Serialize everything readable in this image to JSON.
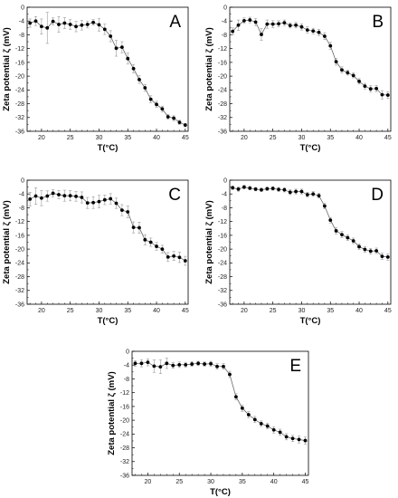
{
  "figure": {
    "xlabel": "T(°C)",
    "ylabel": "Zeta potential ζ (mV)"
  },
  "chart_data": [
    {
      "type": "scatter",
      "title": "A",
      "xlabel": "T(°C)",
      "ylabel": "Zeta potential ζ (mV)",
      "xlim": [
        17.5,
        45.5
      ],
      "ylim": [
        -36,
        0
      ],
      "xticks": [
        20,
        25,
        30,
        35,
        40,
        45
      ],
      "yticks": [
        0,
        -4,
        -8,
        -12,
        -16,
        -20,
        -24,
        -28,
        -32,
        -36
      ],
      "x": [
        18,
        19,
        20,
        21,
        22,
        23,
        24,
        25,
        26,
        27,
        28,
        29,
        30,
        31,
        32,
        33,
        34,
        35,
        36,
        37,
        38,
        39,
        40,
        41,
        42,
        43,
        44,
        45
      ],
      "y": [
        -4.6,
        -4.0,
        -5.6,
        -6.0,
        -4.1,
        -5.0,
        -4.6,
        -5.0,
        -5.6,
        -5.2,
        -5.0,
        -4.4,
        -5.1,
        -6.4,
        -8.4,
        -11.9,
        -11.6,
        -14.9,
        -17.8,
        -21.0,
        -23.4,
        -26.7,
        -28.2,
        -29.5,
        -31.8,
        -32.2,
        -33.4,
        -34.2
      ],
      "err": [
        1.2,
        1.3,
        2.2,
        4.5,
        1.0,
        2.3,
        1.6,
        1.4,
        1.5,
        1.4,
        1.0,
        0.8,
        1.8,
        1.5,
        1.6,
        2.3,
        1.6,
        1.6,
        1.2,
        1.1,
        1.0,
        1.0,
        0.9,
        0.8,
        0.7,
        0.7,
        0.6,
        0.5
      ]
    },
    {
      "type": "scatter",
      "title": "B",
      "xlabel": "T(°C)",
      "ylabel": "Zeta potential ζ (mV)",
      "xlim": [
        17.5,
        45.5
      ],
      "ylim": [
        -36,
        0
      ],
      "xticks": [
        20,
        25,
        30,
        35,
        40,
        45
      ],
      "yticks": [
        0,
        -4,
        -8,
        -12,
        -16,
        -20,
        -24,
        -28,
        -32,
        -36
      ],
      "x": [
        18,
        19,
        20,
        21,
        22,
        23,
        24,
        25,
        26,
        27,
        28,
        29,
        30,
        31,
        32,
        33,
        34,
        35,
        36,
        37,
        38,
        39,
        40,
        41,
        42,
        43,
        44,
        45
      ],
      "y": [
        -7.0,
        -5.2,
        -3.9,
        -3.7,
        -4.3,
        -7.9,
        -4.9,
        -4.9,
        -4.8,
        -4.5,
        -5.3,
        -5.2,
        -5.7,
        -6.6,
        -6.9,
        -7.3,
        -8.4,
        -11.2,
        -15.8,
        -18.2,
        -19.0,
        -19.8,
        -21.5,
        -22.9,
        -23.7,
        -23.6,
        -25.4,
        -25.5
      ],
      "err": [
        1.0,
        1.5,
        0.8,
        0.8,
        1.0,
        1.7,
        1.2,
        1.0,
        0.9,
        0.8,
        0.7,
        0.8,
        0.9,
        0.9,
        0.8,
        0.9,
        1.0,
        1.0,
        1.0,
        0.9,
        0.7,
        0.7,
        0.8,
        0.8,
        0.9,
        0.9,
        1.2,
        1.0
      ]
    },
    {
      "type": "scatter",
      "title": "C",
      "xlabel": "T(°C)",
      "ylabel": "Zeta potential ζ (mV)",
      "xlim": [
        17.5,
        45.5
      ],
      "ylim": [
        -36,
        0
      ],
      "xticks": [
        20,
        25,
        30,
        35,
        40,
        45
      ],
      "yticks": [
        0,
        -4,
        -8,
        -12,
        -16,
        -20,
        -24,
        -28,
        -32,
        -36
      ],
      "x": [
        18,
        19,
        20,
        21,
        22,
        23,
        24,
        25,
        26,
        27,
        28,
        29,
        30,
        31,
        32,
        33,
        34,
        35,
        36,
        37,
        38,
        39,
        40,
        41,
        42,
        43,
        44,
        45
      ],
      "y": [
        -5.5,
        -4.6,
        -5.2,
        -4.6,
        -3.8,
        -4.2,
        -4.5,
        -4.5,
        -4.7,
        -5.0,
        -6.6,
        -6.5,
        -6.2,
        -5.7,
        -5.4,
        -6.7,
        -8.7,
        -9.2,
        -13.7,
        -13.8,
        -17.3,
        -18.0,
        -19.2,
        -20.0,
        -22.3,
        -22.0,
        -22.4,
        -23.4
      ],
      "err": [
        2.0,
        2.4,
        2.2,
        1.5,
        1.0,
        1.2,
        1.6,
        1.5,
        1.4,
        1.6,
        1.6,
        1.7,
        1.8,
        1.4,
        1.5,
        1.5,
        1.6,
        1.7,
        1.6,
        1.6,
        1.5,
        1.2,
        1.1,
        1.1,
        1.3,
        1.3,
        1.5,
        1.3
      ]
    },
    {
      "type": "scatter",
      "title": "D",
      "xlabel": "T(°C)",
      "ylabel": "Zeta potential ζ (mV)",
      "xlim": [
        17.5,
        45.5
      ],
      "ylim": [
        -36,
        0
      ],
      "xticks": [
        20,
        25,
        30,
        35,
        40,
        45
      ],
      "yticks": [
        0,
        -4,
        -8,
        -12,
        -16,
        -20,
        -24,
        -28,
        -32,
        -36
      ],
      "x": [
        18,
        19,
        20,
        21,
        22,
        23,
        24,
        25,
        26,
        27,
        28,
        29,
        30,
        31,
        32,
        33,
        34,
        35,
        36,
        37,
        38,
        39,
        40,
        41,
        42,
        43,
        44,
        45
      ],
      "y": [
        -2.2,
        -2.6,
        -2.0,
        -2.3,
        -2.6,
        -2.8,
        -2.5,
        -2.4,
        -2.7,
        -2.8,
        -3.5,
        -3.3,
        -3.3,
        -4.2,
        -4.0,
        -4.5,
        -7.5,
        -11.6,
        -14.7,
        -15.8,
        -16.7,
        -17.6,
        -19.3,
        -20.1,
        -20.6,
        -20.5,
        -22.1,
        -22.3
      ],
      "err": [
        0.5,
        0.6,
        0.5,
        0.5,
        0.5,
        0.5,
        0.5,
        0.5,
        0.6,
        0.6,
        0.7,
        0.7,
        0.7,
        0.7,
        0.7,
        0.7,
        0.8,
        0.8,
        0.9,
        0.9,
        0.8,
        0.8,
        0.8,
        0.8,
        0.8,
        0.8,
        0.9,
        0.9
      ]
    },
    {
      "type": "scatter",
      "title": "E",
      "xlabel": "T(°C)",
      "ylabel": "Zeta potential ζ (mV)",
      "xlim": [
        17.5,
        45.5
      ],
      "ylim": [
        -36,
        0
      ],
      "xticks": [
        20,
        25,
        30,
        35,
        40,
        45
      ],
      "yticks": [
        0,
        -4,
        -8,
        -12,
        -16,
        -20,
        -24,
        -28,
        -32,
        -36
      ],
      "x": [
        18,
        19,
        20,
        21,
        22,
        23,
        24,
        25,
        26,
        27,
        28,
        29,
        30,
        31,
        32,
        33,
        34,
        35,
        36,
        37,
        38,
        39,
        40,
        41,
        42,
        43,
        44,
        45
      ],
      "y": [
        -3.5,
        -3.5,
        -3.2,
        -4.3,
        -4.5,
        -3.5,
        -4.1,
        -3.9,
        -3.9,
        -3.7,
        -3.5,
        -3.7,
        -3.6,
        -4.4,
        -4.4,
        -6.7,
        -13.2,
        -16.5,
        -18.4,
        -19.8,
        -21.0,
        -21.7,
        -22.8,
        -23.5,
        -24.8,
        -25.3,
        -25.6,
        -25.9
      ],
      "err": [
        0.8,
        1.0,
        1.0,
        1.8,
        2.0,
        1.5,
        0.8,
        0.8,
        0.7,
        0.7,
        0.6,
        0.6,
        0.7,
        0.8,
        0.8,
        0.9,
        0.9,
        0.9,
        0.9,
        0.9,
        0.8,
        0.8,
        0.9,
        0.9,
        0.9,
        0.9,
        1.0,
        1.0
      ]
    }
  ]
}
